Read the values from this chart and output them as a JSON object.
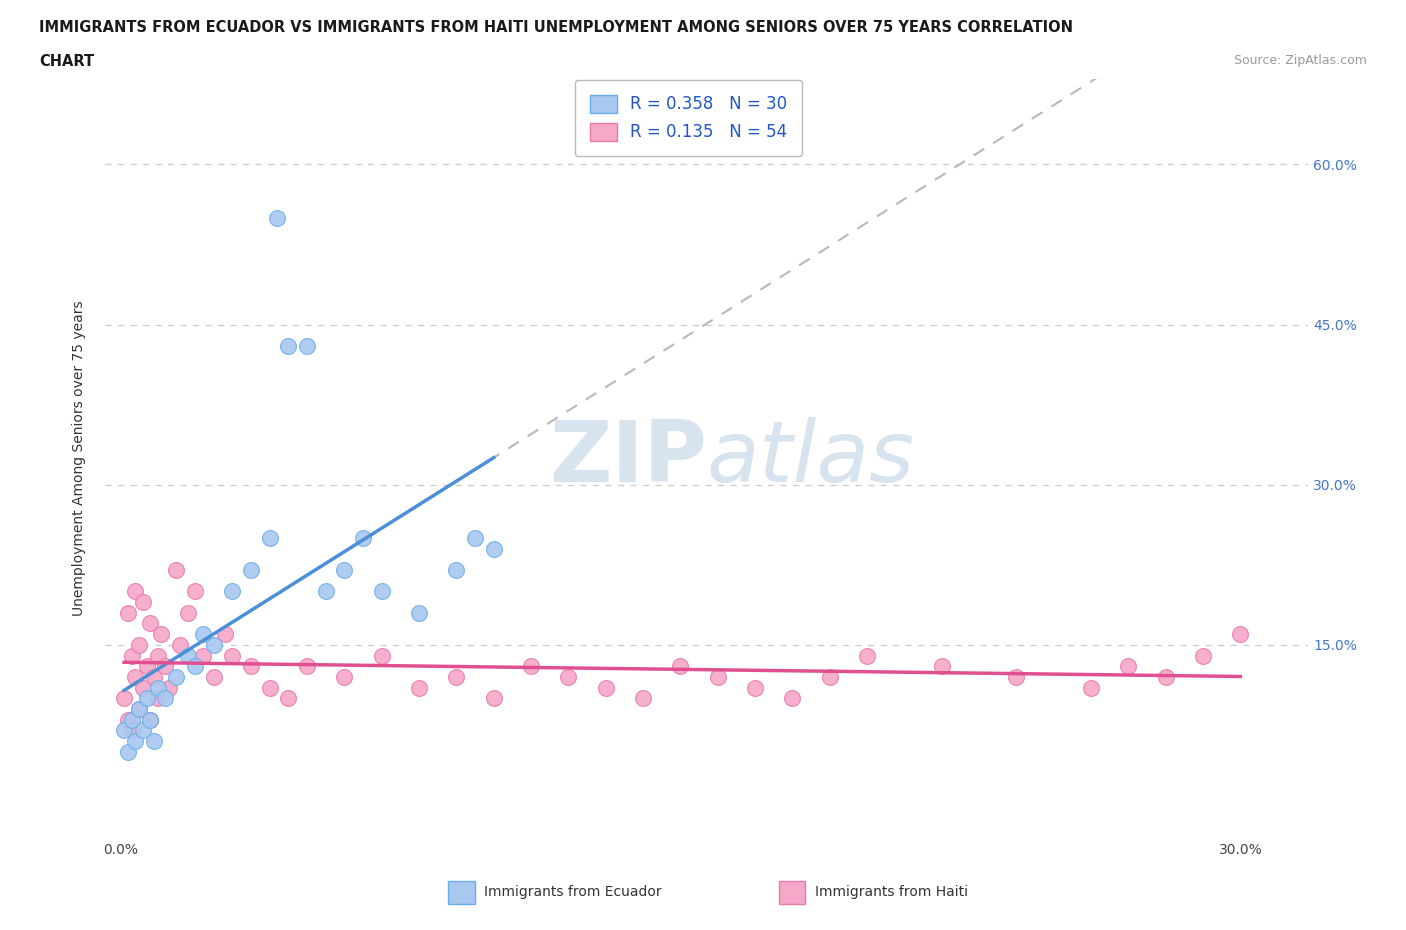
{
  "title_line1": "IMMIGRANTS FROM ECUADOR VS IMMIGRANTS FROM HAITI UNEMPLOYMENT AMONG SENIORS OVER 75 YEARS CORRELATION",
  "title_line2": "CHART",
  "source_text": "Source: ZipAtlas.com",
  "ylabel": "Unemployment Among Seniors over 75 years",
  "xlim": [
    -0.004,
    0.318
  ],
  "ylim": [
    -0.03,
    0.68
  ],
  "ecuador_color": "#a8c8f0",
  "ecuador_edge": "#6aaee8",
  "haiti_color": "#f5a8c8",
  "haiti_edge": "#e87aaa",
  "ecuador_line_color": "#4a90d9",
  "haiti_line_color": "#e05090",
  "dashed_line_color": "#b8b8b8",
  "legend_label_ecuador": "R = 0.358   N = 30",
  "legend_label_haiti": "R = 0.135   N = 54",
  "legend_color_text": "#2255cc",
  "watermark_color": "#c8d8ee",
  "background_color": "#ffffff",
  "ecuador_scatter_x": [
    0.001,
    0.002,
    0.003,
    0.004,
    0.005,
    0.006,
    0.007,
    0.008,
    0.009,
    0.01,
    0.012,
    0.015,
    0.018,
    0.02,
    0.022,
    0.025,
    0.03,
    0.035,
    0.04,
    0.042,
    0.045,
    0.05,
    0.055,
    0.06,
    0.065,
    0.07,
    0.08,
    0.09,
    0.095,
    0.1
  ],
  "ecuador_scatter_y": [
    0.07,
    0.05,
    0.08,
    0.06,
    0.09,
    0.07,
    0.1,
    0.08,
    0.06,
    0.11,
    0.1,
    0.12,
    0.14,
    0.13,
    0.16,
    0.15,
    0.2,
    0.22,
    0.25,
    0.55,
    0.43,
    0.43,
    0.2,
    0.22,
    0.25,
    0.2,
    0.18,
    0.22,
    0.25,
    0.24
  ],
  "haiti_scatter_x": [
    0.001,
    0.002,
    0.002,
    0.003,
    0.003,
    0.004,
    0.004,
    0.005,
    0.005,
    0.006,
    0.006,
    0.007,
    0.008,
    0.008,
    0.009,
    0.01,
    0.01,
    0.011,
    0.012,
    0.013,
    0.015,
    0.016,
    0.018,
    0.02,
    0.022,
    0.025,
    0.028,
    0.03,
    0.035,
    0.04,
    0.045,
    0.05,
    0.06,
    0.07,
    0.08,
    0.09,
    0.1,
    0.11,
    0.12,
    0.13,
    0.14,
    0.15,
    0.16,
    0.17,
    0.18,
    0.19,
    0.2,
    0.22,
    0.24,
    0.26,
    0.27,
    0.28,
    0.29,
    0.3
  ],
  "haiti_scatter_y": [
    0.1,
    0.18,
    0.08,
    0.14,
    0.07,
    0.12,
    0.2,
    0.09,
    0.15,
    0.11,
    0.19,
    0.13,
    0.17,
    0.08,
    0.12,
    0.14,
    0.1,
    0.16,
    0.13,
    0.11,
    0.22,
    0.15,
    0.18,
    0.2,
    0.14,
    0.12,
    0.16,
    0.14,
    0.13,
    0.11,
    0.1,
    0.13,
    0.12,
    0.14,
    0.11,
    0.12,
    0.1,
    0.13,
    0.12,
    0.11,
    0.1,
    0.13,
    0.12,
    0.11,
    0.1,
    0.12,
    0.14,
    0.13,
    0.12,
    0.11,
    0.13,
    0.12,
    0.14,
    0.16
  ]
}
